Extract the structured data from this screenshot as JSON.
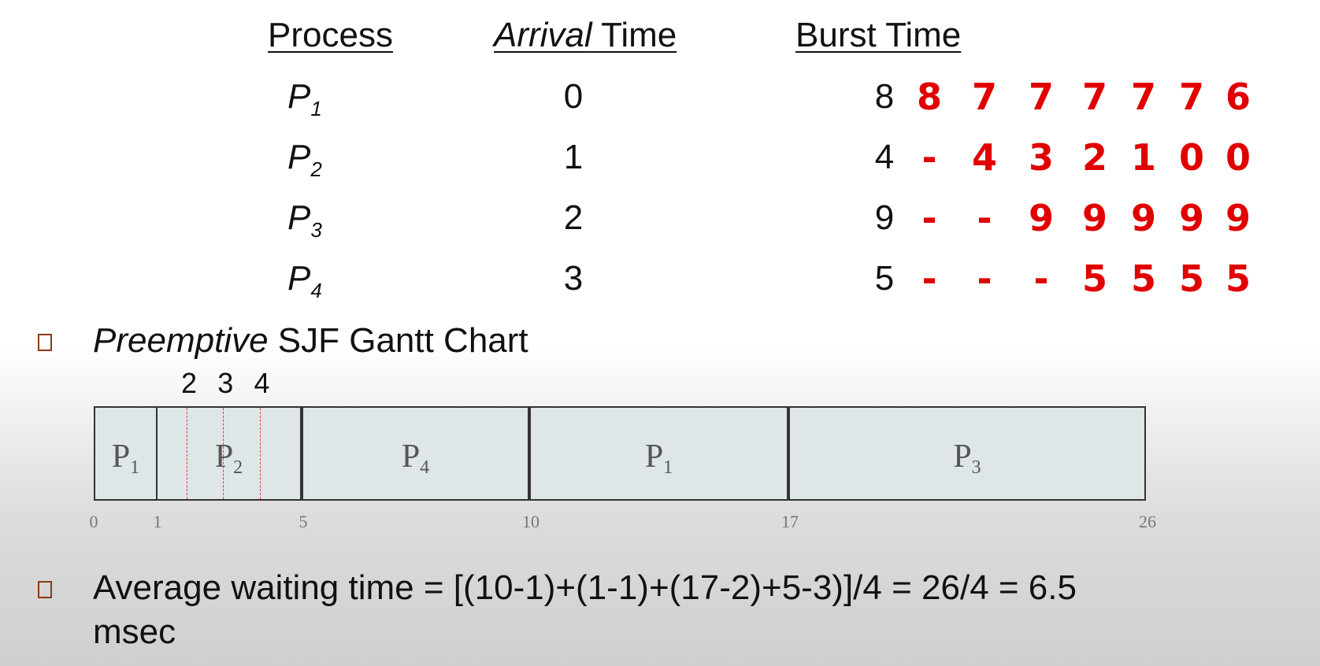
{
  "table": {
    "headers": {
      "process": "Process",
      "arrival_italic": "Arrival",
      "arrival_rest": " Time",
      "burst": "Burst Time"
    },
    "rows": [
      {
        "name": "P",
        "sub": "1",
        "arrival": "0",
        "burst": "8",
        "remaining": [
          "8",
          "7",
          "7",
          "7",
          "7",
          "7",
          "6"
        ]
      },
      {
        "name": "P",
        "sub": "2",
        "arrival": "1",
        "burst": "4",
        "remaining": [
          "-",
          "4",
          "3",
          "2",
          "1",
          "0",
          "0"
        ]
      },
      {
        "name": "P",
        "sub": "3",
        "arrival": "2",
        "burst": "9",
        "remaining": [
          "-",
          "-",
          "9",
          "9",
          "9",
          "9",
          "9"
        ]
      },
      {
        "name": "P",
        "sub": "4",
        "arrival": "3",
        "burst": "5",
        "remaining": [
          "-",
          "-",
          "-",
          "5",
          "5",
          "5",
          "5"
        ]
      }
    ]
  },
  "section": {
    "bullet_glyph": "",
    "title_italic": "Preemptive",
    "title_rest": " SJF Gantt Chart"
  },
  "gantt": {
    "start": 0,
    "end": 26,
    "blocks": [
      {
        "name": "P",
        "sub": "1",
        "start": 0,
        "end": 1
      },
      {
        "name": "P",
        "sub": "2",
        "start": 1,
        "end": 5
      },
      {
        "name": "P",
        "sub": "4",
        "start": 5,
        "end": 10
      },
      {
        "name": "P",
        "sub": "1",
        "start": 10,
        "end": 17
      },
      {
        "name": "P",
        "sub": "3",
        "start": 17,
        "end": 26
      }
    ],
    "ticks": [
      "0",
      "1",
      "5",
      "10",
      "17",
      "26"
    ],
    "tick_values": [
      0,
      1,
      5,
      10,
      17,
      26
    ],
    "sub_marks": [
      {
        "label": "2",
        "value": 1.8
      },
      {
        "label": "3",
        "value": 2.8
      },
      {
        "label": "4",
        "value": 3.8
      }
    ],
    "fill_color": "#dfe6e8",
    "mark_color": "#e04040"
  },
  "footer": {
    "line1": "Average waiting time = [(10-1)+(1-1)+(17-2)+5-3)]/4 = 26/4 = 6.5",
    "line2": "msec"
  },
  "colors": {
    "red": "#e00000",
    "bullet": "#8a3a16"
  }
}
